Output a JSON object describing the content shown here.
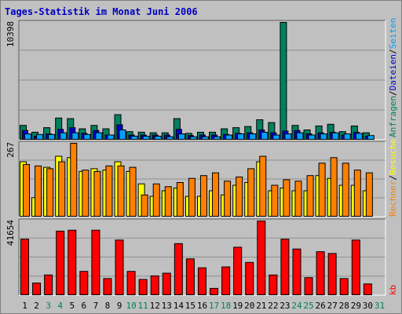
{
  "chart_data": {
    "type": "bar",
    "title": "Tages-Statistik im Monat Juni 2006",
    "x": [
      "1",
      "2",
      "3",
      "4",
      "5",
      "6",
      "7",
      "8",
      "9",
      "10",
      "11",
      "12",
      "13",
      "14",
      "15",
      "16",
      "17",
      "18",
      "19",
      "20",
      "21",
      "22",
      "23",
      "24",
      "25",
      "26",
      "27",
      "28",
      "29",
      "30",
      "31"
    ],
    "x_weekend_days": [
      "3",
      "4",
      "10",
      "11",
      "17",
      "18",
      "24",
      "25",
      "31"
    ],
    "grid": true,
    "colors": {
      "anfragen": "#008060",
      "dateien": "#0000d0",
      "seiten": "#00a0ff",
      "besuche": "#ffff00",
      "rechner": "#ff8000",
      "kb": "#ff0000",
      "title": "#0000c0",
      "weekend_label": "#008060",
      "plot_bg": "#c0c0c0",
      "frame": "#a0a0a0"
    },
    "panels": [
      {
        "max_label": "10398",
        "ylim": [
          0,
          10398
        ],
        "series": [
          {
            "name": "Anfragen",
            "values": [
              1300,
              700,
              1100,
              1950,
              1900,
              1000,
              1300,
              1000,
              2250,
              750,
              700,
              650,
              650,
              1900,
              600,
              700,
              700,
              1000,
              1100,
              1200,
              1800,
              1550,
              10398,
              1300,
              900,
              1250,
              1400,
              750,
              1250,
              650,
              0
            ]
          },
          {
            "name": "Dateien",
            "values": [
              850,
              350,
              550,
              950,
              1100,
              600,
              850,
              450,
              1350,
              450,
              450,
              450,
              450,
              950,
              400,
              450,
              450,
              500,
              600,
              650,
              900,
              650,
              800,
              850,
              550,
              650,
              700,
              450,
              700,
              350,
              0
            ]
          },
          {
            "name": "Seiten",
            "values": [
              550,
              500,
              500,
              650,
              650,
              500,
              650,
              450,
              900,
              350,
              350,
              350,
              300,
              550,
              300,
              300,
              300,
              450,
              550,
              550,
              700,
              450,
              550,
              650,
              450,
              550,
              650,
              550,
              600,
              400,
              0
            ]
          }
        ]
      },
      {
        "max_label": "267",
        "ylim": [
          0,
          267
        ],
        "series": [
          {
            "name": "Besuche",
            "values": [
              200,
              70,
              180,
              220,
              215,
              165,
              175,
              170,
              200,
              165,
              120,
              75,
              95,
              105,
              75,
              75,
              95,
              80,
              115,
              125,
              200,
              95,
              105,
              95,
              95,
              150,
              140,
              115,
              115,
              95,
              0
            ]
          },
          {
            "name": "Rechner",
            "values": [
              190,
              185,
              175,
              200,
              267,
              170,
              165,
              185,
              185,
              180,
              80,
              120,
              110,
              125,
              140,
              150,
              160,
              130,
              145,
              175,
              220,
              115,
              135,
              130,
              150,
              195,
              215,
              195,
              170,
              160,
              0
            ]
          }
        ]
      },
      {
        "max_label": "41654",
        "ylim": [
          0,
          41654
        ],
        "series": [
          {
            "name": "kb",
            "values": [
              31500,
              7000,
              11500,
              36000,
              36500,
              13500,
              36500,
              9500,
              31000,
              13500,
              9000,
              11000,
              12500,
              29000,
              20500,
              15500,
              4000,
              16000,
              27000,
              18500,
              41654,
              11500,
              31500,
              26000,
              10000,
              24500,
              23500,
              9500,
              31000,
              6500,
              0
            ]
          }
        ]
      }
    ],
    "right_label_legend": [
      {
        "text": "Anfragen",
        "series": "anfragen"
      },
      {
        "text": "/",
        "series": ""
      },
      {
        "text": "Dateien",
        "series": "dateien"
      },
      {
        "text": "/",
        "series": ""
      },
      {
        "text": "Seiten",
        "series": "seiten"
      }
    ],
    "right_label_middle": [
      {
        "text": "Rechner",
        "series": "rechner"
      },
      {
        "text": "/",
        "series": ""
      },
      {
        "text": "Besuche",
        "series": "besuche"
      }
    ],
    "right_label_bottom": "kb"
  }
}
